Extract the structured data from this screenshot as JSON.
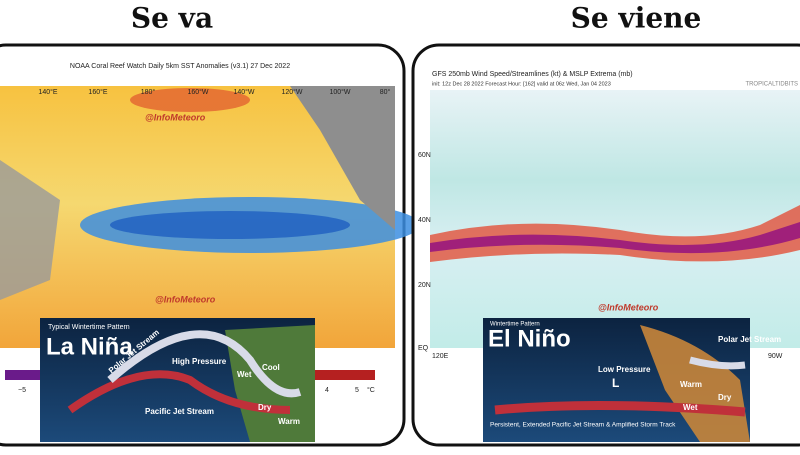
{
  "header": {
    "left": "Se va",
    "right": "Se viene"
  },
  "left_panel": {
    "title": "NOAA Coral Reef Watch Daily 5km SST Anomalies  (v3.1)   27 Dec 2022",
    "lon_labels": [
      "140°E",
      "160°E",
      "180°",
      "160°W",
      "140°W",
      "120°W",
      "100°W",
      "80°"
    ],
    "watermarks": [
      "@InfoMeteoro",
      "@InfoMeteoro"
    ],
    "colorbar_labels": [
      "−5",
      "4",
      "5",
      "°C"
    ],
    "inset": {
      "caption": "Typical Wintertime Pattern",
      "title": "La Niña",
      "high": "High Pressure",
      "polar_jet": "Polar Jet Stream",
      "pacific_jet": "Pacific Jet Stream",
      "cool": "Cool",
      "wet": "Wet",
      "dry": "Dry",
      "warm": "Warm"
    }
  },
  "right_panel": {
    "title": "GFS 250mb Wind Speed/Streamlines (kt) & MSLP Extrema (mb)",
    "subtitle": "init: 12z Dec 28 2022  Forecast Hour: [162]  valid at 06z Wed, Jan 04 2023",
    "credit": "TROPICALTIDBITS",
    "lat_labels": [
      "60N",
      "40N",
      "20N",
      "EQ"
    ],
    "lon_labels": [
      "120E",
      "90W"
    ],
    "watermark": "@InfoMeteoro",
    "inset": {
      "caption": "Wintertime Pattern",
      "title": "El Niño",
      "low": "Low Pressure",
      "low_symbol": "L",
      "polar_jet": "Polar Jet Stream",
      "warm": "Warm",
      "wet": "Wet",
      "dry": "Dry",
      "storm_track": "Persistent, Extended Pacific Jet Stream & Amplified Storm Track"
    }
  }
}
